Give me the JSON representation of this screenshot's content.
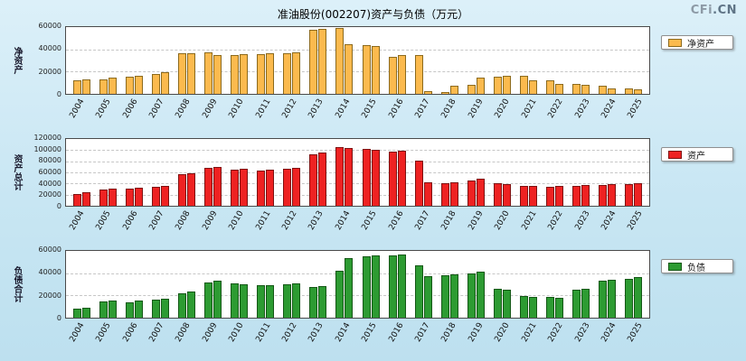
{
  "title": "准油股份(002207)资产与负债（万元）",
  "logo": {
    "part1": "CFi",
    "part2": ".CN"
  },
  "colors": {
    "background": "#c8e6f3",
    "net_assets_bar": "#FBBA4E",
    "assets_bar": "#EE2222",
    "liabilities_bar": "#2D9B32"
  },
  "chart_data": [
    {
      "type": "bar",
      "name": "net-assets",
      "axis_label": "净资产",
      "legend": "净资产",
      "bar_color": "#FBBA4E",
      "bar_border": "#8C6A1D",
      "ylim": [
        0,
        60000
      ],
      "yticks": [
        0,
        20000,
        40000,
        60000
      ],
      "bars_per_year": 2,
      "categories": [
        "2004",
        "2005",
        "2006",
        "2007",
        "2008",
        "2009",
        "2010",
        "2011",
        "2012",
        "2013",
        "2014",
        "2015",
        "2016",
        "2017",
        "2018",
        "2019",
        "2020",
        "2021",
        "2022",
        "2023",
        "2024",
        "2025"
      ],
      "values": [
        [
          11800,
          12900
        ],
        [
          13300,
          14300
        ],
        [
          15400,
          16300
        ],
        [
          18100,
          19300
        ],
        [
          36100,
          36900
        ],
        [
          37000,
          34900
        ],
        [
          34900,
          35400
        ],
        [
          35900,
          36500
        ],
        [
          36700,
          37700
        ],
        [
          57700,
          58500
        ],
        [
          59000,
          44400
        ],
        [
          43900,
          43100
        ],
        [
          33300,
          34500
        ],
        [
          35000,
          2200
        ],
        [
          1900,
          7300
        ],
        [
          8500,
          14900
        ],
        [
          15400,
          16000
        ],
        [
          16500,
          12400
        ],
        [
          12100,
          9200
        ],
        [
          8800,
          8000
        ],
        [
          7400,
          5200
        ],
        [
          4500,
          3900
        ]
      ]
    },
    {
      "type": "bar",
      "name": "total-assets",
      "axis_label": "资产总计",
      "legend": "资产",
      "bar_color": "#EE2222",
      "bar_border": "#7E1111",
      "ylim": [
        0,
        120000
      ],
      "yticks": [
        0,
        20000,
        40000,
        60000,
        80000,
        100000,
        120000
      ],
      "bars_per_year": 2,
      "categories": [
        "2004",
        "2005",
        "2006",
        "2007",
        "2008",
        "2009",
        "2010",
        "2011",
        "2012",
        "2013",
        "2014",
        "2015",
        "2016",
        "2017",
        "2018",
        "2019",
        "2020",
        "2021",
        "2022",
        "2023",
        "2024",
        "2025"
      ],
      "values": [
        [
          21500,
          24800
        ],
        [
          29500,
          30800
        ],
        [
          30900,
          32100
        ],
        [
          34800,
          36300
        ],
        [
          56500,
          58200
        ],
        [
          67500,
          69200
        ],
        [
          64800,
          66100
        ],
        [
          63900,
          65300
        ],
        [
          66800,
          68300
        ],
        [
          92500,
          95200
        ],
        [
          105800,
          103200
        ],
        [
          102200,
          100500
        ],
        [
          97800,
          99200
        ],
        [
          81800,
          41500
        ],
        [
          40200,
          41800
        ],
        [
          46200,
          48500
        ],
        [
          40300,
          38600
        ],
        [
          36200,
          34900
        ],
        [
          34100,
          35100
        ],
        [
          35900,
          36900
        ],
        [
          37900,
          38900
        ],
        [
          39300,
          40100
        ]
      ]
    },
    {
      "type": "bar",
      "name": "total-liabilities",
      "axis_label": "负债合计",
      "legend": "负债",
      "bar_color": "#2D9B32",
      "bar_border": "#145816",
      "ylim": [
        0,
        60000
      ],
      "yticks": [
        0,
        20000,
        40000,
        60000
      ],
      "bars_per_year": 2,
      "categories": [
        "2004",
        "2005",
        "2006",
        "2007",
        "2008",
        "2009",
        "2010",
        "2011",
        "2012",
        "2013",
        "2014",
        "2015",
        "2016",
        "2017",
        "2018",
        "2019",
        "2020",
        "2021",
        "2022",
        "2023",
        "2024",
        "2025"
      ],
      "values": [
        [
          7800,
          9000
        ],
        [
          14300,
          15300
        ],
        [
          14200,
          15100
        ],
        [
          16000,
          17200
        ],
        [
          21800,
          23200
        ],
        [
          31800,
          33200
        ],
        [
          30800,
          30200
        ],
        [
          28800,
          29600
        ],
        [
          30100,
          30700
        ],
        [
          27800,
          28300
        ],
        [
          42500,
          53200
        ],
        [
          54800,
          55800
        ],
        [
          56300,
          56800
        ],
        [
          47200,
          37500
        ],
        [
          37800,
          39200
        ],
        [
          39500,
          41200
        ],
        [
          26000,
          24800
        ],
        [
          19500,
          18700
        ],
        [
          19000,
          17900
        ],
        [
          24800,
          26300
        ],
        [
          33000,
          34200
        ],
        [
          35200,
          36400
        ]
      ]
    }
  ]
}
